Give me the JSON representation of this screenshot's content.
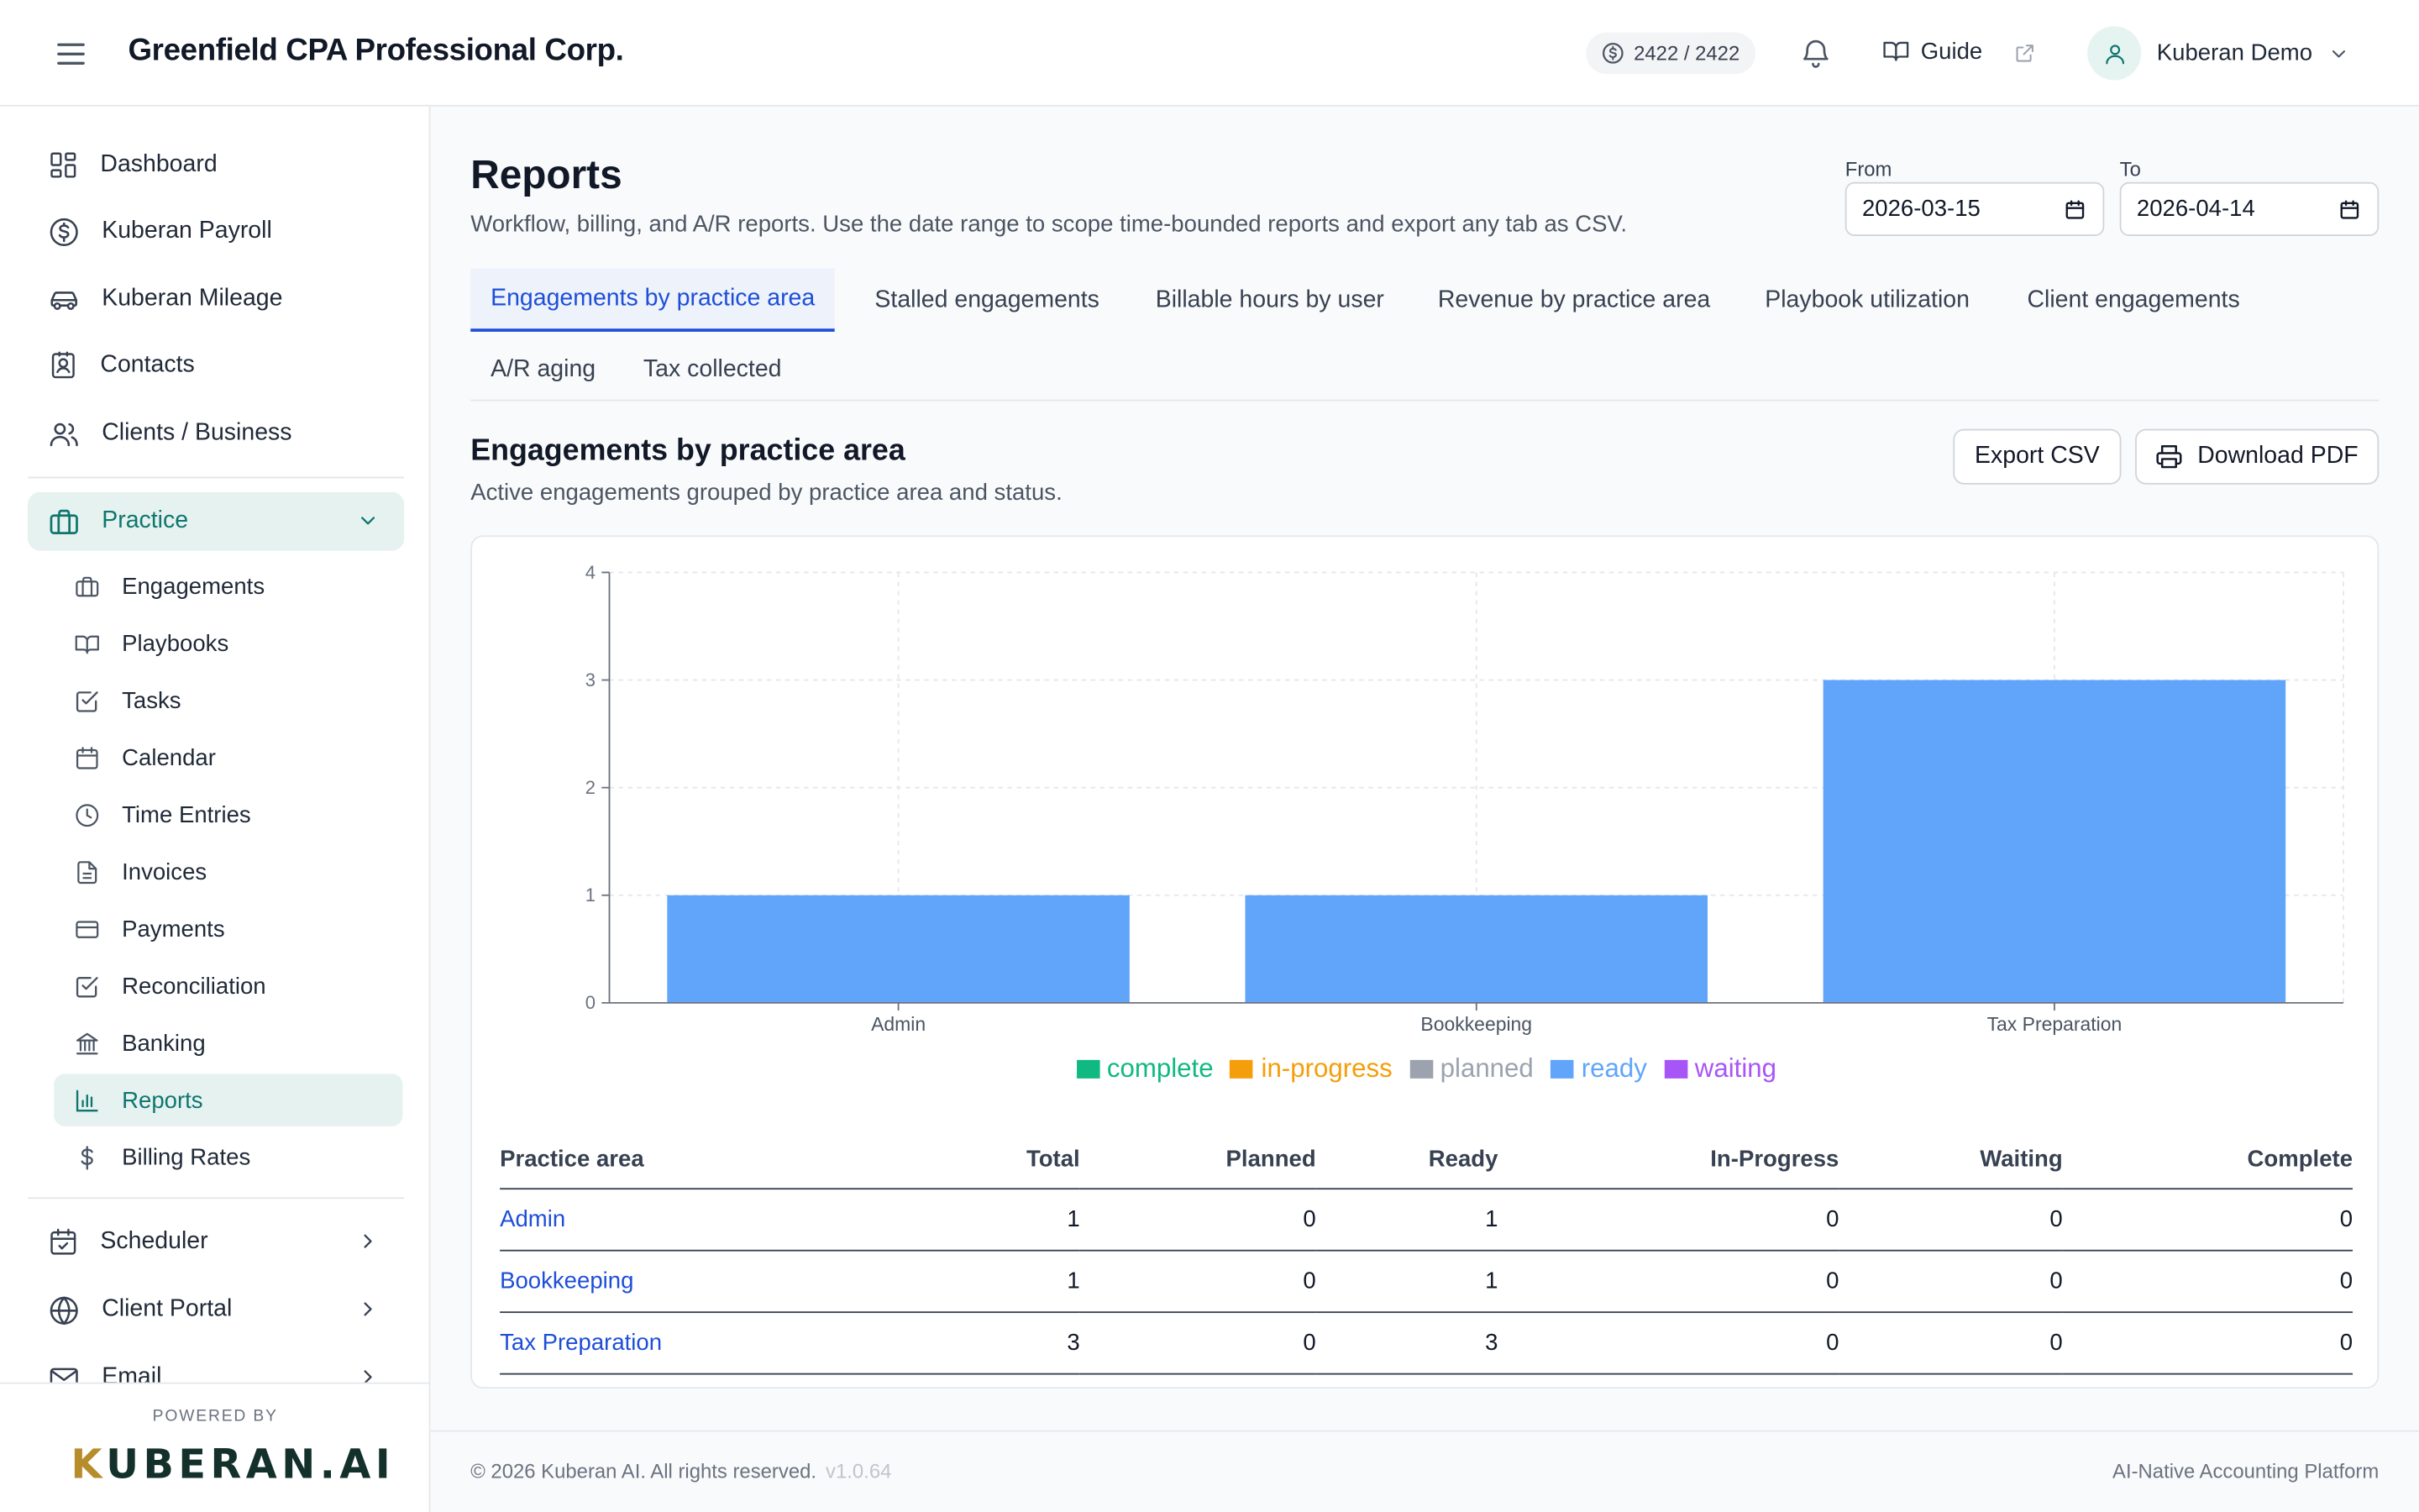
{
  "header": {
    "company": "Greenfield CPA Professional Corp.",
    "credits": "2422 / 2422",
    "guide_label": "Guide",
    "user_name": "Kuberan Demo"
  },
  "sidebar": {
    "items": [
      {
        "label": "Dashboard",
        "icon": "dashboard-icon"
      },
      {
        "label": "Kuberan Payroll",
        "icon": "dollar-circle-icon"
      },
      {
        "label": "Kuberan Mileage",
        "icon": "car-icon"
      },
      {
        "label": "Contacts",
        "icon": "contacts-icon"
      },
      {
        "label": "Clients / Business",
        "icon": "users-icon"
      }
    ],
    "practice": {
      "label": "Practice",
      "icon": "briefcase-icon",
      "expanded": true
    },
    "practice_items": [
      {
        "label": "Engagements",
        "icon": "briefcase-icon"
      },
      {
        "label": "Playbooks",
        "icon": "book-icon"
      },
      {
        "label": "Tasks",
        "icon": "checkbox-icon"
      },
      {
        "label": "Calendar",
        "icon": "calendar-icon"
      },
      {
        "label": "Time Entries",
        "icon": "clock-icon"
      },
      {
        "label": "Invoices",
        "icon": "document-icon"
      },
      {
        "label": "Payments",
        "icon": "credit-card-icon"
      },
      {
        "label": "Reconciliation",
        "icon": "checkbox-icon"
      },
      {
        "label": "Banking",
        "icon": "bank-icon"
      },
      {
        "label": "Reports",
        "icon": "bar-chart-icon",
        "active": true
      },
      {
        "label": "Billing Rates",
        "icon": "dollar-icon"
      }
    ],
    "bottom_items": [
      {
        "label": "Scheduler",
        "icon": "calendar-check-icon"
      },
      {
        "label": "Client Portal",
        "icon": "globe-icon"
      },
      {
        "label": "Email",
        "icon": "mail-icon"
      }
    ],
    "powered_by": "POWERED BY",
    "logo_k": "K",
    "logo_rest": "UBERAN.AI"
  },
  "page": {
    "title": "Reports",
    "subtitle": "Workflow, billing, and A/R reports. Use the date range to scope time-bounded reports and export any tab as CSV.",
    "from_label": "From",
    "from_value": "2026-03-15",
    "to_label": "To",
    "to_value": "2026-04-14"
  },
  "tabs": [
    {
      "label": "Engagements by practice area",
      "active": true
    },
    {
      "label": "Stalled engagements"
    },
    {
      "label": "Billable hours by user"
    },
    {
      "label": "Revenue by practice area"
    },
    {
      "label": "Playbook utilization"
    },
    {
      "label": "Client engagements"
    },
    {
      "label": "A/R aging"
    },
    {
      "label": "Tax collected"
    }
  ],
  "report": {
    "title": "Engagements by practice area",
    "subtitle": "Active engagements grouped by practice area and status.",
    "export_csv": "Export CSV",
    "download_pdf": "Download PDF"
  },
  "chart_data": {
    "type": "bar",
    "stacked": true,
    "categories": [
      "Admin",
      "Bookkeeping",
      "Tax Preparation"
    ],
    "series": [
      {
        "name": "complete",
        "values": [
          0,
          0,
          0
        ],
        "color": "#10b981"
      },
      {
        "name": "in-progress",
        "values": [
          0,
          0,
          0
        ],
        "color": "#f59e0b"
      },
      {
        "name": "planned",
        "values": [
          0,
          0,
          0
        ],
        "color": "#9ca3af"
      },
      {
        "name": "ready",
        "values": [
          1,
          1,
          3
        ],
        "color": "#60a5fa"
      },
      {
        "name": "waiting",
        "values": [
          0,
          0,
          0
        ],
        "color": "#a855f7"
      }
    ],
    "ylim": [
      0,
      4
    ],
    "yticks": [
      "0",
      "1",
      "2",
      "3",
      "4"
    ],
    "grid": true,
    "legend": "bottom"
  },
  "table": {
    "headers": [
      "Practice area",
      "Total",
      "Planned",
      "Ready",
      "In-Progress",
      "Waiting",
      "Complete"
    ],
    "rows": [
      [
        "Admin",
        "1",
        "0",
        "1",
        "0",
        "0",
        "0"
      ],
      [
        "Bookkeeping",
        "1",
        "0",
        "1",
        "0",
        "0",
        "0"
      ],
      [
        "Tax Preparation",
        "3",
        "0",
        "3",
        "0",
        "0",
        "0"
      ]
    ]
  },
  "footer": {
    "copyright": "© 2026 Kuberan AI. All rights reserved.",
    "version": "v1.0.64",
    "platform": "AI-Native Accounting Platform"
  }
}
